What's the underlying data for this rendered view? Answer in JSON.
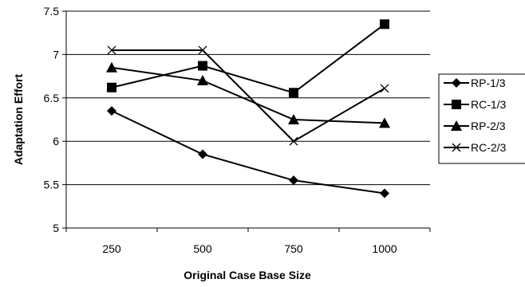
{
  "chart_data": {
    "type": "line",
    "title": "",
    "xlabel": "Original Case Base Size",
    "ylabel": "Adaptation Effort",
    "categories": [
      "250",
      "500",
      "750",
      "1000"
    ],
    "ylim": [
      5,
      7.5
    ],
    "yticks": [
      "5",
      "5.5",
      "6",
      "6.5",
      "7",
      "7.5"
    ],
    "grid": "horizontal",
    "legend_position": "right",
    "series": [
      {
        "name": "RP-1/3",
        "marker": "diamond",
        "values": [
          6.35,
          5.85,
          5.55,
          5.4
        ]
      },
      {
        "name": "RC-1/3",
        "marker": "square",
        "values": [
          6.62,
          6.87,
          6.56,
          7.35
        ]
      },
      {
        "name": "RP-2/3",
        "marker": "triangle",
        "values": [
          6.85,
          6.7,
          6.25,
          6.21
        ]
      },
      {
        "name": "RC-2/3",
        "marker": "x",
        "values": [
          7.05,
          7.05,
          6.0,
          6.61
        ]
      }
    ],
    "colors": {
      "line": "#000000",
      "grid": "#000000",
      "background": "#ffffff"
    }
  }
}
